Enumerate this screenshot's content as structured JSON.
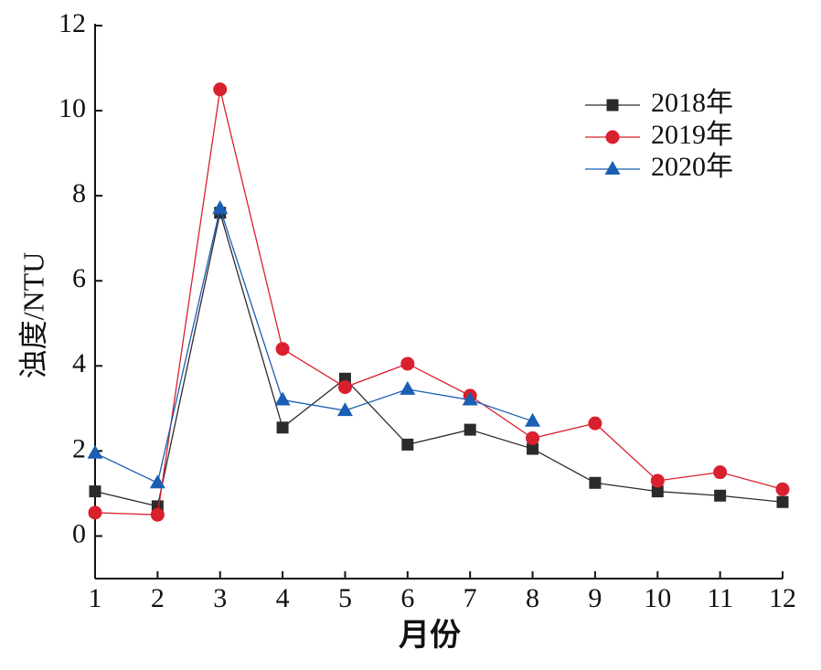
{
  "chart_data": {
    "type": "line",
    "x_label": "月份",
    "y_label": "浊度/NTU",
    "x": [
      1,
      2,
      3,
      4,
      5,
      6,
      7,
      8,
      9,
      10,
      11,
      12
    ],
    "series": [
      {
        "name": "2018年",
        "color": "#2b2b2b",
        "marker": "square",
        "values": [
          1.05,
          0.7,
          7.6,
          2.55,
          3.7,
          2.15,
          2.5,
          2.05,
          1.25,
          1.05,
          0.95,
          0.8
        ]
      },
      {
        "name": "2019年",
        "color": "#d9202e",
        "marker": "circle",
        "values": [
          0.55,
          0.5,
          10.5,
          4.4,
          3.5,
          4.05,
          3.3,
          2.3,
          2.65,
          1.3,
          1.5,
          1.1
        ]
      },
      {
        "name": "2020年",
        "color": "#1a5fb4",
        "marker": "triangle",
        "values": [
          1.95,
          1.25,
          7.7,
          3.2,
          2.95,
          3.45,
          3.2,
          2.7,
          null,
          null,
          null,
          null
        ]
      }
    ],
    "xlim": [
      1,
      12
    ],
    "xticks": [
      1,
      2,
      3,
      4,
      5,
      6,
      7,
      8,
      9,
      10,
      11,
      12
    ],
    "ylim": [
      -1,
      12
    ],
    "yticks": [
      0,
      2,
      4,
      6,
      8,
      10,
      12
    ],
    "grid": false,
    "legend": "upper right"
  }
}
